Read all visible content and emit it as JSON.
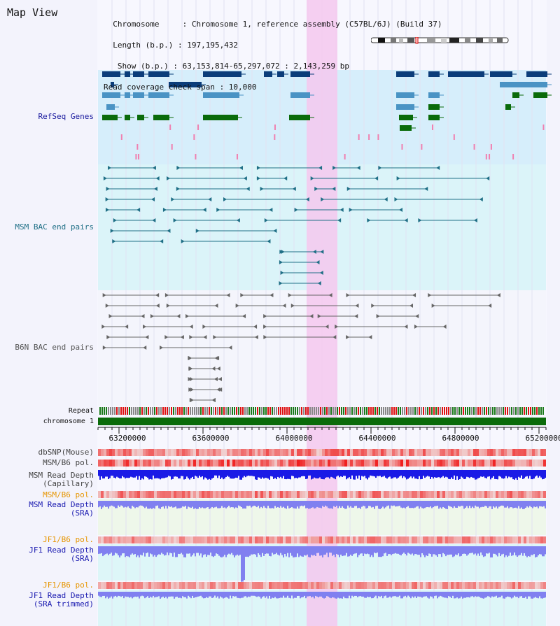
{
  "header": {
    "title": "Map View",
    "info_lines": [
      "  Chromosome     : Chromosome 1, reference assembly (C57BL/6J) (Build 37)",
      "  Length (b.p.) : 197,195,432",
      "   Show (b.p.) : 63,153,814-65,297,072 : 2,143,259 bp",
      "Read coverage check span : 10,000"
    ]
  },
  "tracks": {
    "refseq": {
      "label": "RefSeq Genes",
      "color": "#1a1a9e"
    },
    "msm_bac": {
      "label": "MSM BAC end pairs",
      "color": "#1f6f86"
    },
    "b6n_bac": {
      "label": "B6N BAC end pairs",
      "color": "#555555"
    },
    "repeat": {
      "label": "Repeat",
      "color": "#111111"
    },
    "chromosome": {
      "label": "chromosome 1",
      "color": "#111111"
    },
    "dbsnp": {
      "label": "dbSNP(Mouse)",
      "color": "#444444"
    },
    "msm_b6_pol": {
      "label": "MSM/B6 pol.",
      "color": "#444444"
    },
    "msm_depth_cap": {
      "label": "MSM Read Depth\n(Capillary)",
      "color": "#444444"
    },
    "msm_b6_pol2": {
      "label": "MSM/B6 pol.",
      "color": "#e69500"
    },
    "msm_depth_sra": {
      "label": "MSM Read Depth\n(SRA)",
      "color": "#1a1ab0"
    },
    "jf1_b6_pol": {
      "label": "JF1/B6 pol.",
      "color": "#e69500"
    },
    "jf1_depth_sra": {
      "label": "JF1 Read Depth\n(SRA)",
      "color": "#1a1ab0"
    },
    "jf1_b6_pol2": {
      "label": "JF1/B6 pol.",
      "color": "#e69500"
    },
    "jf1_depth_trim": {
      "label": "JF1 Read Depth\n(SRA trimmed)",
      "color": "#1a1ab0"
    }
  },
  "axis": {
    "ticks": [
      "63200000",
      "63600000",
      "64000000",
      "64400000",
      "64800000",
      "65200000"
    ]
  },
  "colors": {
    "highlight": "#f5c8ee",
    "refseq_bg": "#d6eefb",
    "msm_bg": "#dbf4f9",
    "b6n_bg": "#f4f5fc",
    "gene_dark": "#0b3d7a",
    "gene_mid": "#4a93c4",
    "gene_green": "#0a6b0a",
    "bac_msm": "#1f6f86",
    "bac_b6n": "#666666",
    "depth_blue": "#1a1ae6",
    "depth_light": "#8080f0",
    "pol_red": "#e04040"
  }
}
